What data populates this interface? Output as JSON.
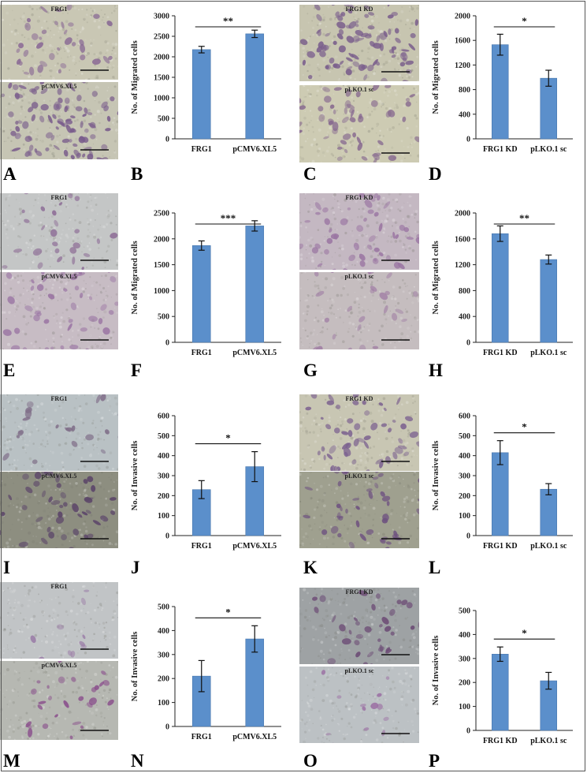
{
  "panel_letters": [
    "A",
    "B",
    "C",
    "D",
    "E",
    "F",
    "G",
    "H",
    "I",
    "J",
    "K",
    "L",
    "M",
    "N",
    "O",
    "P"
  ],
  "micrographs": [
    {
      "id": "A-top",
      "caption": "FRG1",
      "bg": "#c9c7b4",
      "cell": "#8a6a95",
      "density": 40
    },
    {
      "id": "A-bottom",
      "caption": "pCMV6.XL5",
      "bg": "#c6c5b4",
      "cell": "#7a5d8c",
      "density": 110
    },
    {
      "id": "C-top",
      "caption": "FRG1 KD",
      "bg": "#c7c5b0",
      "cell": "#7a5e8c",
      "density": 110
    },
    {
      "id": "C-bottom",
      "caption": "pLKO.1 sc",
      "bg": "#cdcbb3",
      "cell": "#86688f",
      "density": 60
    },
    {
      "id": "E-top",
      "caption": "FRG1",
      "bg": "#c4c6c6",
      "cell": "#8d6d96",
      "density": 35
    },
    {
      "id": "E-bottom",
      "caption": "pCMV6.XL5",
      "bg": "#c7bcc4",
      "cell": "#9a74a3",
      "density": 60
    },
    {
      "id": "G-top",
      "caption": "FRG1 KD",
      "bg": "#c4b8c2",
      "cell": "#9a75a2",
      "density": 60
    },
    {
      "id": "G-bottom",
      "caption": "pLKO.1 sc",
      "bg": "#c5bdbf",
      "cell": "#a07ea4",
      "density": 30
    },
    {
      "id": "I-top",
      "caption": "FRG1",
      "bg": "#b9c1c4",
      "cell": "#7f6d88",
      "density": 25
    },
    {
      "id": "I-bottom",
      "caption": "pCMV6.XL5",
      "bg": "#8d8e80",
      "cell": "#5a4368",
      "density": 55
    },
    {
      "id": "K-top",
      "caption": "FRG1 KD",
      "bg": "#c8c6b3",
      "cell": "#7d6390",
      "density": 70
    },
    {
      "id": "K-bottom",
      "caption": "pLKO.1 sc",
      "bg": "#9fa08f",
      "cell": "#6e5280",
      "density": 55
    },
    {
      "id": "M-top",
      "caption": "FRG1",
      "bg": "#c1c4c6",
      "cell": "#9a7aa6",
      "density": 12
    },
    {
      "id": "M-bottom",
      "caption": "pCMV6.XL5",
      "bg": "#b6b8b2",
      "cell": "#8a4f8c",
      "density": 30
    },
    {
      "id": "O-top",
      "caption": "FRG1 KD",
      "bg": "#9ea2a4",
      "cell": "#6c4b75",
      "density": 40
    },
    {
      "id": "O-bottom",
      "caption": "pLKO.1 sc",
      "bg": "#bcc1c4",
      "cell": "#9b6fa3",
      "density": 18
    }
  ],
  "colors": {
    "bar": "#5b8fcb",
    "bar_edge": "#4a78ad"
  },
  "chart_data": [
    {
      "panel": "B",
      "type": "bar",
      "categories": [
        "FRG1",
        "pCMV6.XL5"
      ],
      "values": [
        2175,
        2560
      ],
      "errors": [
        80,
        90
      ],
      "ylabel": "No. of Migrated cells",
      "ylim": [
        0,
        3000
      ],
      "yticks": [
        0,
        500,
        1000,
        1500,
        2000,
        2500,
        3000
      ],
      "significance": "**"
    },
    {
      "panel": "D",
      "type": "bar",
      "categories": [
        "FRG1 KD",
        "pLKO.1 sc"
      ],
      "values": [
        1530,
        985
      ],
      "errors": [
        170,
        130
      ],
      "ylabel": "No. of Migrated cells",
      "ylim": [
        0,
        2000
      ],
      "yticks": [
        0,
        400,
        800,
        1200,
        1600,
        2000
      ],
      "significance": "*"
    },
    {
      "panel": "F",
      "type": "bar",
      "categories": [
        "FRG1",
        "pCMV6.XL5"
      ],
      "values": [
        1870,
        2250
      ],
      "errors": [
        90,
        100
      ],
      "ylabel": "No. of Migrated cells",
      "ylim": [
        0,
        2500
      ],
      "yticks": [
        0,
        500,
        1000,
        1500,
        2000,
        2500
      ],
      "significance": "***"
    },
    {
      "panel": "H",
      "type": "bar",
      "categories": [
        "FRG1 KD",
        "pLKO.1 sc"
      ],
      "values": [
        1680,
        1280
      ],
      "errors": [
        120,
        70
      ],
      "ylabel": "No. of Migrated cells",
      "ylim": [
        0,
        2000
      ],
      "yticks": [
        0,
        400,
        800,
        1200,
        1600,
        2000
      ],
      "significance": "**"
    },
    {
      "panel": "J",
      "type": "bar",
      "categories": [
        "FRG1",
        "pCMV6.XL5"
      ],
      "values": [
        230,
        345
      ],
      "errors": [
        45,
        75
      ],
      "ylabel": "No. of Invasive cells",
      "ylim": [
        0,
        600
      ],
      "yticks": [
        0,
        100,
        200,
        300,
        400,
        500,
        600
      ],
      "significance": "*"
    },
    {
      "panel": "L",
      "type": "bar",
      "categories": [
        "FRG1 KD",
        "pLKO.1 sc"
      ],
      "values": [
        415,
        232
      ],
      "errors": [
        60,
        28
      ],
      "ylabel": "No. of Invasive cells",
      "ylim": [
        0,
        600
      ],
      "yticks": [
        0,
        100,
        200,
        300,
        400,
        500,
        600
      ],
      "significance": "*"
    },
    {
      "panel": "N",
      "type": "bar",
      "categories": [
        "FRG1",
        "pCMV6.XL5"
      ],
      "values": [
        210,
        365
      ],
      "errors": [
        65,
        55
      ],
      "ylabel": "No. of Invasive cells",
      "ylim": [
        0,
        500
      ],
      "yticks": [
        0,
        100,
        200,
        300,
        400,
        500
      ],
      "significance": "*"
    },
    {
      "panel": "P",
      "type": "bar",
      "categories": [
        "FRG1 KD",
        "pLKO.1 sc"
      ],
      "values": [
        318,
        207
      ],
      "errors": [
        30,
        35
      ],
      "ylabel": "No. of Invasive cells",
      "ylim": [
        0,
        500
      ],
      "yticks": [
        0,
        100,
        200,
        300,
        400,
        500
      ],
      "significance": "*"
    }
  ]
}
